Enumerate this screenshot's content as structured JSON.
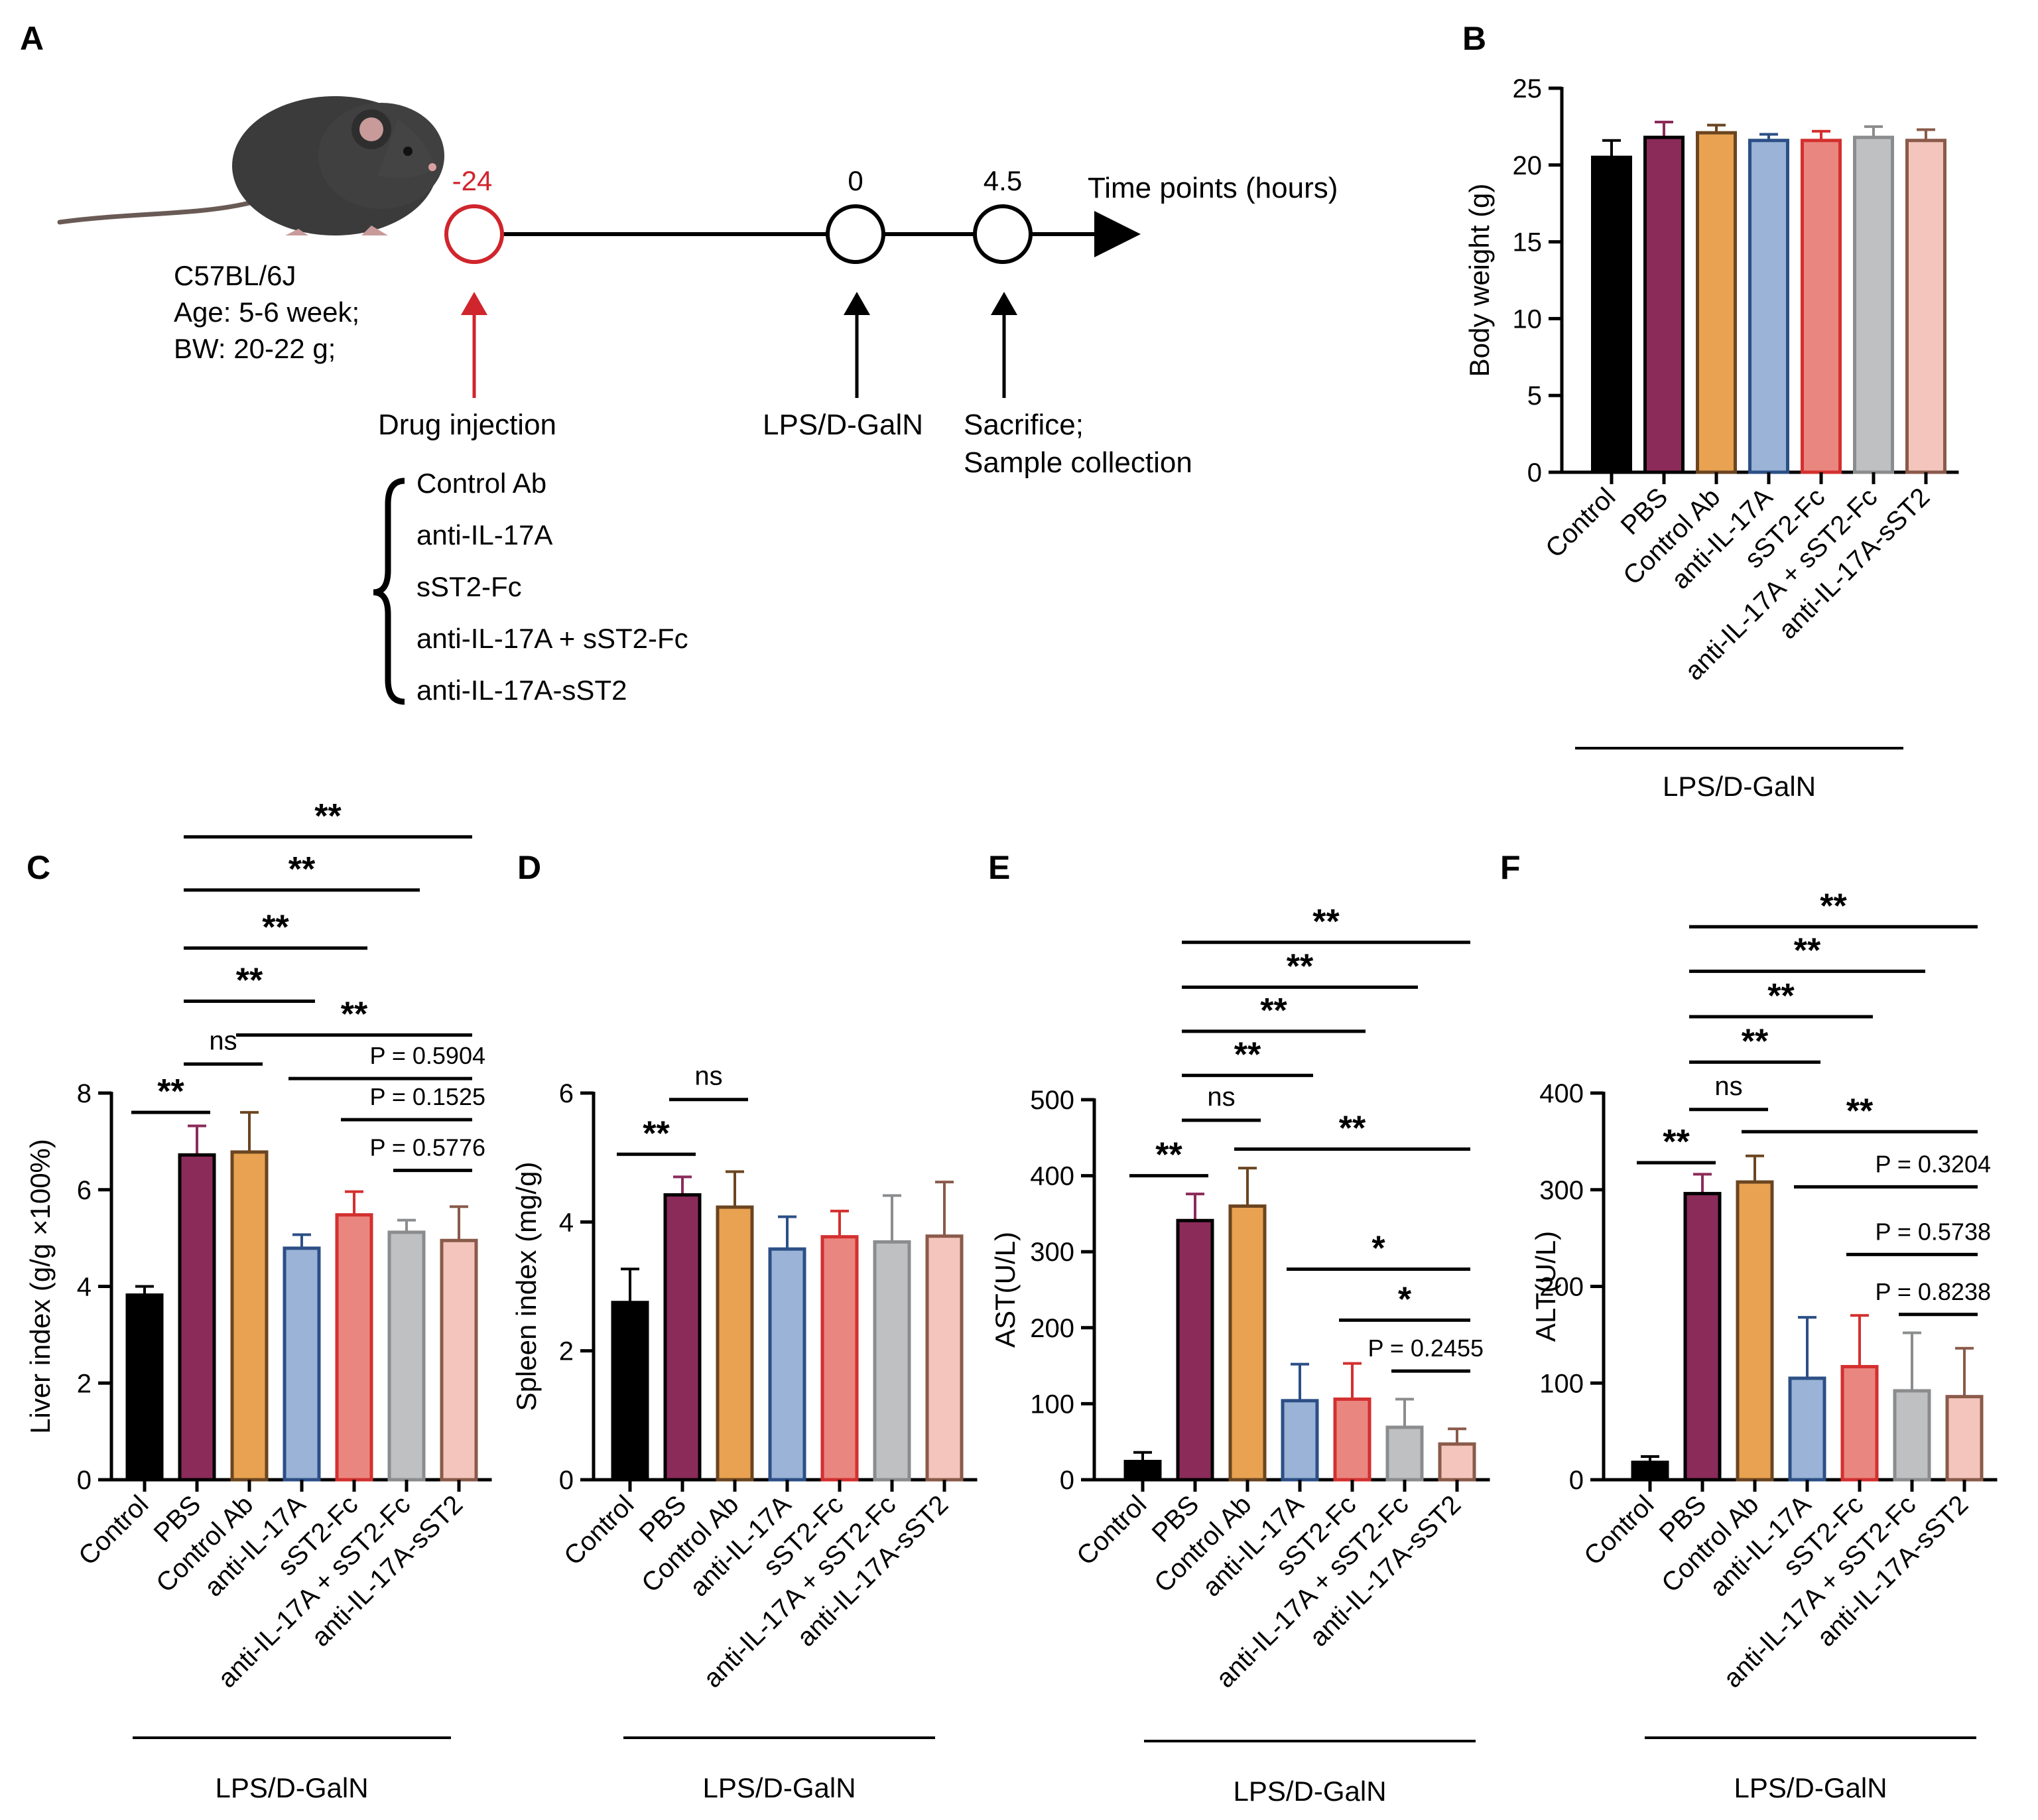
{
  "colors": {
    "control": "#000000",
    "pbs": "#8b2b5a",
    "control_ab": "#e8a251",
    "anti_il17a": "#9ab3d6",
    "anti_il17a_edge": "#2c4f86",
    "sst2_fc": "#ea8680",
    "sst2_fc_edge": "#d3302f",
    "combo": "#bfc0c2",
    "combo_edge": "#8b8c8e",
    "bispecific": "#f3c5bc",
    "bispecific_edge": "#8a5a4a",
    "highlight_red": "#d0252c"
  },
  "panel_a": {
    "label": "A",
    "mouse_strain": "C57BL/6J",
    "mouse_age": "Age: 5-6 week;",
    "mouse_bw": "BW: 20-22 g;",
    "axis_title": "Time points (hours)",
    "tp1": "-24",
    "tp2": "0",
    "tp3": "4.5",
    "event1": "Drug injection",
    "event2": "LPS/D-GalN",
    "event3a": "Sacrifice;",
    "event3b": "Sample collection",
    "drugs": [
      "Control Ab",
      "anti-IL-17A",
      "sST2-Fc",
      "anti-IL-17A + sST2-Fc",
      "anti-IL-17A-sST2"
    ]
  },
  "chart_data": [
    {
      "panel": "B",
      "type": "bar",
      "categories": [
        "Control",
        "PBS",
        "Control Ab",
        "anti-IL-17A",
        "sST2-Fc",
        "anti-IL-17A + sST2-Fc",
        "anti-IL-17A-sST2"
      ],
      "values": [
        20.5,
        21.8,
        22.1,
        21.6,
        21.6,
        21.8,
        21.6
      ],
      "errors": [
        1.1,
        1.0,
        0.5,
        0.4,
        0.6,
        0.7,
        0.7
      ],
      "ylabel": "Body weight (g)",
      "group_label": "LPS/D-GalN",
      "ylim": [
        0,
        25
      ],
      "yticks": [
        "0",
        "5",
        "10",
        "15",
        "20",
        "25"
      ],
      "annotations": []
    },
    {
      "panel": "C",
      "type": "bar",
      "categories": [
        "Control",
        "PBS",
        "Control Ab",
        "anti-IL-17A",
        "sST2-Fc",
        "anti-IL-17A + sST2-Fc",
        "anti-IL-17A-sST2"
      ],
      "values": [
        3.82,
        6.72,
        6.78,
        4.79,
        5.48,
        5.12,
        4.95
      ],
      "errors": [
        0.18,
        0.6,
        0.82,
        0.28,
        0.48,
        0.25,
        0.7
      ],
      "ylabel": "Liver index (g/g ×100%)",
      "group_label": "LPS/D-GalN",
      "ylim": [
        0,
        8
      ],
      "yticks": [
        "0",
        "2",
        "4",
        "6",
        "8"
      ],
      "annotations": [
        {
          "from": 0,
          "to": 1,
          "level": 7.6,
          "text": "**"
        },
        {
          "from": 1,
          "to": 2,
          "level": 8.6,
          "text": "ns"
        },
        {
          "from": 1,
          "to": 3,
          "level": 9.9,
          "text": "**"
        },
        {
          "from": 1,
          "to": 4,
          "level": 11.0,
          "text": "**"
        },
        {
          "from": 1,
          "to": 5,
          "level": 12.2,
          "text": "**"
        },
        {
          "from": 1,
          "to": 6,
          "level": 13.3,
          "text": "**"
        },
        {
          "from": 2,
          "to": 6,
          "level": 9.2,
          "text": "**"
        },
        {
          "from": 3,
          "to": 6,
          "level": 8.3,
          "text": "P = 0.5904"
        },
        {
          "from": 4,
          "to": 6,
          "level": 7.45,
          "text": "P = 0.1525"
        },
        {
          "from": 5,
          "to": 6,
          "level": 6.4,
          "text": "P = 0.5776"
        }
      ]
    },
    {
      "panel": "D",
      "type": "bar",
      "categories": [
        "Control",
        "PBS",
        "Control Ab",
        "anti-IL-17A",
        "sST2-Fc",
        "anti-IL-17A + sST2-Fc",
        "anti-IL-17A-sST2"
      ],
      "values": [
        2.75,
        4.42,
        4.23,
        3.58,
        3.77,
        3.69,
        3.78
      ],
      "errors": [
        0.52,
        0.28,
        0.55,
        0.5,
        0.4,
        0.72,
        0.84
      ],
      "ylabel": "Spleen index (mg/g)",
      "group_label": "LPS/D-GalN",
      "ylim": [
        0,
        6
      ],
      "yticks": [
        "0",
        "2",
        "4",
        "6"
      ],
      "annotations": [
        {
          "from": 0,
          "to": 1,
          "level": 5.05,
          "text": "**"
        },
        {
          "from": 1,
          "to": 2,
          "level": 5.9,
          "text": "ns"
        }
      ]
    },
    {
      "panel": "E",
      "type": "bar",
      "categories": [
        "Control",
        "PBS",
        "Control Ab",
        "anti-IL-17A",
        "sST2-Fc",
        "anti-IL-17A + sST2-Fc",
        "anti-IL-17A-sST2"
      ],
      "values": [
        24,
        341,
        360,
        104,
        106,
        69,
        47
      ],
      "errors": [
        12,
        35,
        50,
        48,
        47,
        37,
        20
      ],
      "ylabel": "AST(U/L)",
      "group_label": "LPS/D-GalN",
      "ylim": [
        0,
        500
      ],
      "yticks": [
        "0",
        "100",
        "200",
        "300",
        "400",
        "500"
      ],
      "annotations": [
        {
          "from": 0,
          "to": 1,
          "level": 400,
          "text": "**"
        },
        {
          "from": 1,
          "to": 2,
          "level": 473,
          "text": "ns"
        },
        {
          "from": 1,
          "to": 3,
          "level": 532,
          "text": "**"
        },
        {
          "from": 1,
          "to": 4,
          "level": 590,
          "text": "**"
        },
        {
          "from": 1,
          "to": 5,
          "level": 648,
          "text": "**"
        },
        {
          "from": 1,
          "to": 6,
          "level": 707,
          "text": "**"
        },
        {
          "from": 2,
          "to": 6,
          "level": 435,
          "text": "**"
        },
        {
          "from": 3,
          "to": 6,
          "level": 277,
          "text": "*"
        },
        {
          "from": 4,
          "to": 6,
          "level": 210,
          "text": "*"
        },
        {
          "from": 5,
          "to": 6,
          "level": 143,
          "text": "P = 0.2455"
        }
      ]
    },
    {
      "panel": "F",
      "type": "bar",
      "categories": [
        "Control",
        "PBS",
        "Control Ab",
        "anti-IL-17A",
        "sST2-Fc",
        "anti-IL-17A + sST2-Fc",
        "anti-IL-17A-sST2"
      ],
      "values": [
        18,
        296,
        308,
        105,
        117,
        92,
        86
      ],
      "errors": [
        6,
        20,
        27,
        63,
        53,
        60,
        50
      ],
      "ylabel": "ALT(U/L)",
      "group_label": "LPS/D-GalN",
      "ylim": [
        0,
        400
      ],
      "yticks": [
        "0",
        "100",
        "200",
        "300",
        "400"
      ],
      "annotations": [
        {
          "from": 0,
          "to": 1,
          "level": 328,
          "text": "**"
        },
        {
          "from": 1,
          "to": 2,
          "level": 383,
          "text": "ns"
        },
        {
          "from": 1,
          "to": 3,
          "level": 432,
          "text": "**"
        },
        {
          "from": 1,
          "to": 4,
          "level": 479,
          "text": "**"
        },
        {
          "from": 1,
          "to": 5,
          "level": 526,
          "text": "**"
        },
        {
          "from": 1,
          "to": 6,
          "level": 572,
          "text": "**"
        },
        {
          "from": 2,
          "to": 6,
          "level": 360,
          "text": "**"
        },
        {
          "from": 3,
          "to": 6,
          "level": 303,
          "text": "P = 0.3204"
        },
        {
          "from": 4,
          "to": 6,
          "level": 233,
          "text": "P = 0.5738"
        },
        {
          "from": 5,
          "to": 6,
          "level": 171,
          "text": "P = 0.8238"
        }
      ]
    }
  ]
}
